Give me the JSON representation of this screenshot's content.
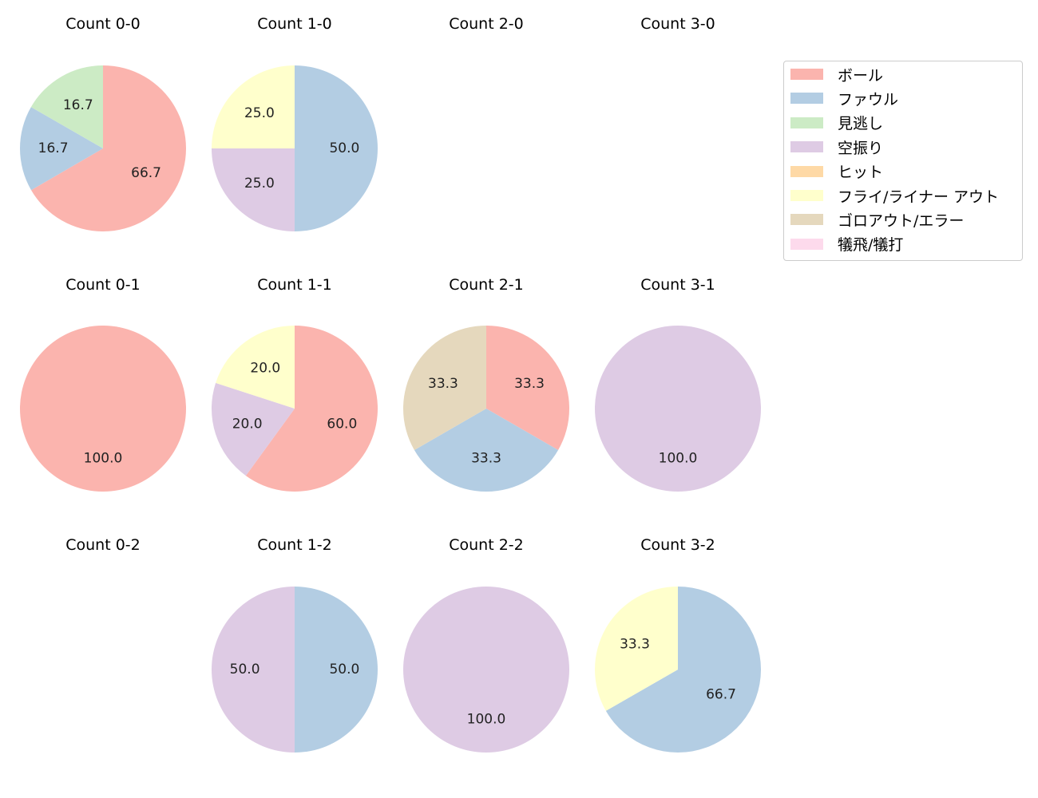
{
  "chart_data": {
    "type": "pie",
    "categories": [
      "ボール",
      "ファウル",
      "見逃し",
      "空振り",
      "ヒット",
      "フライ/ライナー アウト",
      "ゴロアウト/エラー",
      "犠飛/犠打"
    ],
    "colors": [
      "#fbb4ae",
      "#b3cde3",
      "#ccebc5",
      "#decbe4",
      "#fed9a6",
      "#ffffcc",
      "#e5d8bd",
      "#fddaec"
    ],
    "start_angle": 90,
    "direction": "clockwise",
    "legend_position": "top-right",
    "subplots": [
      {
        "title": "Count 0-0",
        "row": 0,
        "col": 0,
        "slices": [
          {
            "cat": 0,
            "value": 66.7
          },
          {
            "cat": 1,
            "value": 16.7
          },
          {
            "cat": 2,
            "value": 16.7
          }
        ]
      },
      {
        "title": "Count 1-0",
        "row": 0,
        "col": 1,
        "slices": [
          {
            "cat": 1,
            "value": 50.0
          },
          {
            "cat": 3,
            "value": 25.0
          },
          {
            "cat": 5,
            "value": 25.0
          }
        ]
      },
      {
        "title": "Count 2-0",
        "row": 0,
        "col": 2,
        "slices": []
      },
      {
        "title": "Count 3-0",
        "row": 0,
        "col": 3,
        "slices": []
      },
      {
        "title": "Count 0-1",
        "row": 1,
        "col": 0,
        "slices": [
          {
            "cat": 0,
            "value": 100.0
          }
        ]
      },
      {
        "title": "Count 1-1",
        "row": 1,
        "col": 1,
        "slices": [
          {
            "cat": 0,
            "value": 60.0
          },
          {
            "cat": 3,
            "value": 20.0
          },
          {
            "cat": 5,
            "value": 20.0
          }
        ]
      },
      {
        "title": "Count 2-1",
        "row": 1,
        "col": 2,
        "slices": [
          {
            "cat": 0,
            "value": 33.3
          },
          {
            "cat": 1,
            "value": 33.3
          },
          {
            "cat": 6,
            "value": 33.3
          }
        ]
      },
      {
        "title": "Count 3-1",
        "row": 1,
        "col": 3,
        "slices": [
          {
            "cat": 3,
            "value": 100.0
          }
        ]
      },
      {
        "title": "Count 0-2",
        "row": 2,
        "col": 0,
        "slices": []
      },
      {
        "title": "Count 1-2",
        "row": 2,
        "col": 1,
        "slices": [
          {
            "cat": 1,
            "value": 50.0
          },
          {
            "cat": 3,
            "value": 50.0
          }
        ]
      },
      {
        "title": "Count 2-2",
        "row": 2,
        "col": 2,
        "slices": [
          {
            "cat": 3,
            "value": 100.0
          }
        ]
      },
      {
        "title": "Count 3-2",
        "row": 2,
        "col": 3,
        "slices": [
          {
            "cat": 1,
            "value": 66.7
          },
          {
            "cat": 5,
            "value": 33.3
          }
        ]
      }
    ]
  }
}
